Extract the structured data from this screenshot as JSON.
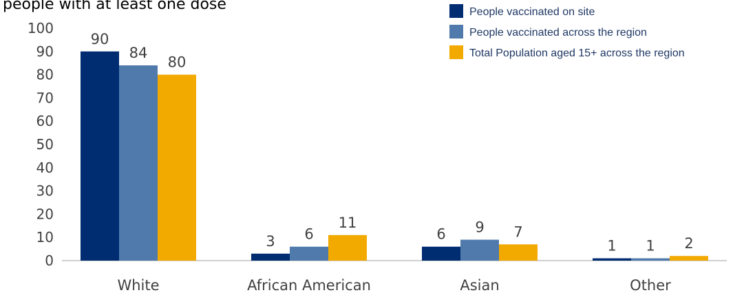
{
  "chart_data": {
    "type": "bar",
    "title": "people with at least one dose",
    "categories": [
      "White",
      "African American",
      "Asian",
      "Other"
    ],
    "series": [
      {
        "name": "People vaccinated on site",
        "color": "#002d72",
        "values": [
          90,
          3,
          6,
          1
        ]
      },
      {
        "name": "People vaccinated across the region",
        "color": "#4f7aab",
        "values": [
          84,
          6,
          9,
          1
        ]
      },
      {
        "name": "Total Population aged 15+ across the region",
        "color": "#f2a900",
        "values": [
          80,
          11,
          7,
          2
        ]
      }
    ],
    "ylim": [
      0,
      100
    ],
    "yticks": [
      "0",
      "10",
      "20",
      "30",
      "40",
      "50",
      "60",
      "70",
      "80",
      "90",
      "100"
    ],
    "grid": false,
    "legend": "top-right"
  }
}
